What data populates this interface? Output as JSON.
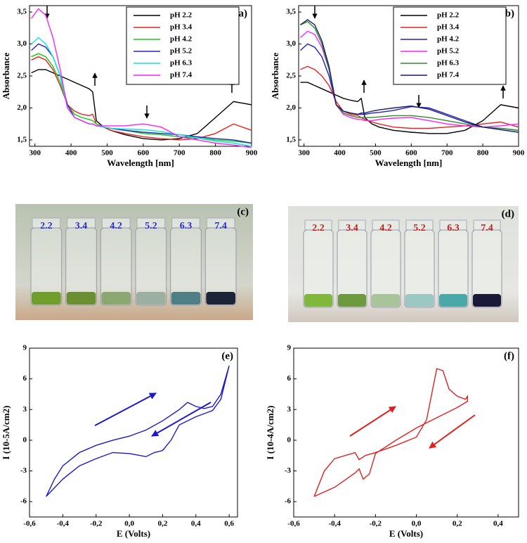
{
  "chart_data": [
    {
      "type": "line",
      "title": "(a)",
      "x_label": "Wavelength [nm]",
      "y_label": "Absorbance",
      "legend": "upper right",
      "xlim": [
        285,
        900
      ],
      "xticks": [
        300,
        400,
        500,
        600,
        700,
        800,
        900
      ],
      "ylim": [
        1.4,
        3.6
      ],
      "yticks": [
        {
          "value": 1.5,
          "label": "1,5"
        },
        {
          "value": 2.0,
          "label": "2,0"
        },
        {
          "value": 2.5,
          "label": "2,5"
        },
        {
          "value": 3.0,
          "label": "3,0"
        },
        {
          "value": 3.5,
          "label": "3,5"
        }
      ],
      "x": [
        290,
        310,
        330,
        350,
        370,
        390,
        410,
        430,
        450,
        460,
        470,
        490,
        510,
        550,
        600,
        650,
        700,
        750,
        800,
        850,
        900
      ],
      "series": [
        {
          "name": "pH 2.2",
          "color": "#000000",
          "values": [
            2.55,
            2.6,
            2.6,
            2.55,
            2.5,
            2.45,
            2.4,
            2.35,
            2.3,
            2.25,
            1.8,
            1.7,
            1.65,
            1.58,
            1.52,
            1.5,
            1.52,
            1.6,
            1.85,
            2.1,
            2.05
          ]
        },
        {
          "name": "pH 3.4",
          "color": "#e8231f",
          "values": [
            2.75,
            2.8,
            2.75,
            2.6,
            2.35,
            2.05,
            1.95,
            1.9,
            1.88,
            1.9,
            1.75,
            1.7,
            1.65,
            1.6,
            1.55,
            1.52,
            1.5,
            1.52,
            1.6,
            1.75,
            1.65
          ]
        },
        {
          "name": "pH 4.2",
          "color": "#10d010",
          "values": [
            2.8,
            2.85,
            2.8,
            2.65,
            2.4,
            2.05,
            1.9,
            1.85,
            1.82,
            1.8,
            1.75,
            1.7,
            1.68,
            1.65,
            1.6,
            1.58,
            1.55,
            1.53,
            1.5,
            1.48,
            1.45
          ]
        },
        {
          "name": "pH 5.2",
          "color": "#2323c8",
          "values": [
            2.9,
            3.0,
            2.95,
            2.8,
            2.5,
            2.05,
            1.85,
            1.8,
            1.75,
            1.75,
            1.72,
            1.7,
            1.68,
            1.65,
            1.62,
            1.6,
            1.58,
            1.55,
            1.52,
            1.5,
            1.45
          ]
        },
        {
          "name": "pH 6.3",
          "color": "#10e0e8",
          "values": [
            3.0,
            3.1,
            3.0,
            2.8,
            2.5,
            2.0,
            1.85,
            1.8,
            1.75,
            1.75,
            1.72,
            1.7,
            1.68,
            1.67,
            1.66,
            1.63,
            1.58,
            1.53,
            1.48,
            1.45,
            1.4
          ]
        },
        {
          "name": "pH 7.4",
          "color": "#ff20ff",
          "values": [
            3.4,
            3.55,
            3.45,
            3.1,
            2.6,
            2.0,
            1.85,
            1.8,
            1.75,
            1.75,
            1.72,
            1.72,
            1.72,
            1.72,
            1.75,
            1.7,
            1.55,
            1.5,
            1.45,
            1.42,
            1.38
          ]
        }
      ]
    },
    {
      "type": "line",
      "title": "(b)",
      "x_label": "Wavelength [nm]",
      "y_label": "Absorbance",
      "legend": "upper right",
      "xlim": [
        285,
        900
      ],
      "xticks": [
        300,
        400,
        500,
        600,
        700,
        800,
        900
      ],
      "ylim": [
        1.4,
        3.6
      ],
      "yticks": [
        {
          "value": 1.5,
          "label": "1,5"
        },
        {
          "value": 2.0,
          "label": "2,0"
        },
        {
          "value": 2.5,
          "label": "2,5"
        },
        {
          "value": 3.0,
          "label": "3,0"
        },
        {
          "value": 3.5,
          "label": "3,5"
        }
      ],
      "x": [
        290,
        310,
        330,
        350,
        370,
        390,
        410,
        430,
        450,
        460,
        470,
        490,
        510,
        550,
        600,
        650,
        700,
        750,
        800,
        850,
        900
      ],
      "series": [
        {
          "name": "pH 2.2",
          "color": "#000000",
          "values": [
            2.4,
            2.4,
            2.35,
            2.3,
            2.25,
            2.2,
            2.15,
            2.12,
            2.1,
            2.15,
            1.85,
            1.75,
            1.7,
            1.65,
            1.62,
            1.6,
            1.6,
            1.65,
            1.8,
            2.05,
            2.0
          ]
        },
        {
          "name": "pH 3.4",
          "color": "#e8231f",
          "values": [
            2.6,
            2.65,
            2.6,
            2.5,
            2.35,
            2.1,
            1.95,
            1.9,
            1.88,
            1.85,
            1.82,
            1.78,
            1.75,
            1.7,
            1.68,
            1.68,
            1.7,
            1.72,
            1.75,
            1.78,
            1.7
          ]
        },
        {
          "name": "pH 4.2",
          "color": "#2020c0",
          "values": [
            2.9,
            3.0,
            2.95,
            2.8,
            2.5,
            2.05,
            1.95,
            1.92,
            1.9,
            1.9,
            1.9,
            1.92,
            1.93,
            1.96,
            2.02,
            2.0,
            1.9,
            1.8,
            1.7,
            1.68,
            1.65
          ]
        },
        {
          "name": "pH 5.2",
          "color": "#ff20ff",
          "values": [
            3.1,
            3.2,
            3.15,
            2.95,
            2.6,
            2.05,
            1.9,
            1.85,
            1.82,
            1.82,
            1.8,
            1.8,
            1.82,
            1.84,
            1.85,
            1.8,
            1.75,
            1.72,
            1.7,
            1.72,
            1.75
          ]
        },
        {
          "name": "pH 6.3",
          "color": "#2e8b2e",
          "values": [
            3.3,
            3.35,
            3.25,
            3.0,
            2.6,
            2.05,
            1.92,
            1.88,
            1.85,
            1.85,
            1.85,
            1.85,
            1.86,
            1.88,
            1.88,
            1.85,
            1.8,
            1.75,
            1.7,
            1.68,
            1.65
          ]
        },
        {
          "name": "pH 7.4",
          "color": "#1a1a6e",
          "values": [
            3.3,
            3.38,
            3.3,
            3.05,
            2.65,
            2.05,
            1.95,
            1.92,
            1.9,
            1.92,
            1.92,
            1.95,
            1.97,
            2.0,
            2.03,
            1.98,
            1.88,
            1.78,
            1.7,
            1.66,
            1.62
          ]
        }
      ]
    },
    {
      "type": "line",
      "title": "(e)",
      "x_label": "E (Volts)",
      "y_label": "I (10-5A/cm2)",
      "xlim": [
        -0.6,
        0.65
      ],
      "xticks": [
        {
          "value": -0.6,
          "label": "-0,6"
        },
        {
          "value": -0.4,
          "label": "-0,4"
        },
        {
          "value": -0.2,
          "label": "-0,2"
        },
        {
          "value": 0.0,
          "label": "0,0"
        },
        {
          "value": 0.2,
          "label": "0,2"
        },
        {
          "value": 0.4,
          "label": "0,4"
        },
        {
          "value": 0.6,
          "label": "0,6"
        }
      ],
      "ylim": [
        -7.5,
        9
      ],
      "yticks": [
        -6,
        -3,
        0,
        3,
        6,
        9
      ],
      "series": [
        {
          "color": "#1a1acc",
          "x": [
            -0.5,
            -0.45,
            -0.4,
            -0.3,
            -0.2,
            -0.1,
            0,
            0.1,
            0.2,
            0.3,
            0.35,
            0.4,
            0.45,
            0.5,
            0.55,
            0.6,
            0.55,
            0.5,
            0.45,
            0.4,
            0.3,
            0.25,
            0.2,
            0.15,
            0.1,
            0,
            -0.1,
            -0.2,
            -0.3,
            -0.4,
            -0.5
          ],
          "values": [
            -5.5,
            -3.8,
            -2.5,
            -1.2,
            -0.5,
            0,
            0.4,
            1,
            1.9,
            3.0,
            3.7,
            3.3,
            3.1,
            3.3,
            4.5,
            7.3,
            4,
            2.9,
            2.6,
            2.3,
            1.5,
            0,
            -1,
            -1.2,
            -1.6,
            -1.3,
            -1.2,
            -1.8,
            -2.5,
            -3.8,
            -5.5
          ]
        }
      ]
    },
    {
      "type": "line",
      "title": "(f)",
      "x_label": "E (Volts)",
      "y_label": "I (10-4A/cm2)",
      "xlim": [
        -0.6,
        0.5
      ],
      "xticks": [
        {
          "value": -0.6,
          "label": "-0,6"
        },
        {
          "value": -0.4,
          "label": "-0,4"
        },
        {
          "value": -0.2,
          "label": "-0,2"
        },
        {
          "value": 0.0,
          "label": "0,0"
        },
        {
          "value": 0.2,
          "label": "0,2"
        },
        {
          "value": 0.4,
          "label": "0,4"
        }
      ],
      "ylim": [
        -7.5,
        9
      ],
      "yticks": [
        -6,
        -3,
        0,
        3,
        6,
        9
      ],
      "series": [
        {
          "color": "#e02020",
          "x": [
            -0.5,
            -0.45,
            -0.4,
            -0.3,
            -0.28,
            -0.25,
            -0.2,
            -0.1,
            0,
            0.05,
            0.08,
            0.1,
            0.13,
            0.16,
            0.2,
            0.24,
            0.25,
            0.25,
            0.2,
            0.1,
            0,
            -0.1,
            -0.2,
            -0.23,
            -0.26,
            -0.28,
            -0.3,
            -0.4,
            -0.5
          ],
          "values": [
            -5.5,
            -3,
            -1.8,
            -1.2,
            -1.9,
            -1.5,
            -1.2,
            -0.5,
            0.3,
            2,
            5,
            7,
            6.8,
            5,
            4.3,
            4,
            4.3,
            3.8,
            3.2,
            2.2,
            1.2,
            0,
            -1.3,
            -3.3,
            -3.8,
            -2.8,
            -3.2,
            -4.6,
            -5.5
          ]
        }
      ]
    }
  ],
  "photos": [
    {
      "label": "(c)",
      "vial_labels": [
        "2.2",
        "3.4",
        "4.2",
        "5.2",
        "6.3",
        "7.4"
      ]
    },
    {
      "label": "(d)",
      "vial_labels": [
        "2.2",
        "3.4",
        "4.2",
        "5.2",
        "6.3",
        "7.4"
      ]
    }
  ]
}
